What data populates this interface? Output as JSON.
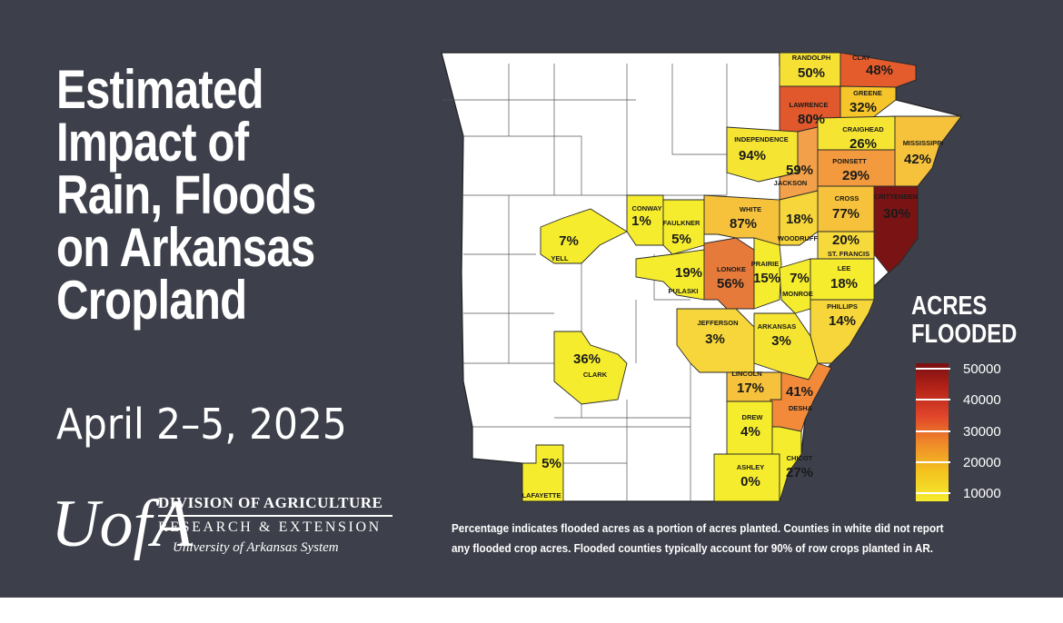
{
  "title_lines": [
    "Estimated",
    "Impact of",
    "Rain, Floods",
    "on Arkansas",
    "Cropland"
  ],
  "dates": "April 2–5, 2025",
  "logo": {
    "mark": "UofA",
    "line1": "DIVISION OF AGRICULTURE",
    "line2": "RESEARCH & EXTENSION",
    "line3": "University of Arkansas System"
  },
  "legend": {
    "title_lines": [
      "ACRES",
      "FLOODED"
    ],
    "labels": [
      "50000",
      "40000",
      "30000",
      "20000",
      "10000"
    ]
  },
  "counties": [
    {
      "name": "RANDOLPH",
      "pct": "50%",
      "color": "#f6e034"
    },
    {
      "name": "CLAY",
      "pct": "48%",
      "color": "#e55c2c"
    },
    {
      "name": "GREENE",
      "pct": "32%",
      "color": "#f6c52a"
    },
    {
      "name": "LAWRENCE",
      "pct": "80%",
      "color": "#e0582c"
    },
    {
      "name": "CRAIGHEAD",
      "pct": "26%",
      "color": "#f5e532"
    },
    {
      "name": "MISSISSIPPI",
      "pct": "42%",
      "color": "#f6c23c"
    },
    {
      "name": "INDEPENDENCE",
      "pct": "94%",
      "color": "#f5e532"
    },
    {
      "name": "JACKSON",
      "pct": "59%",
      "color": "#f2a04a"
    },
    {
      "name": "POINSETT",
      "pct": "29%",
      "color": "#f39a3e"
    },
    {
      "name": "CROSS",
      "pct": "77%",
      "color": "#f6c23c"
    },
    {
      "name": "CRITTENDEN",
      "pct": "30%",
      "color": "#7a1414"
    },
    {
      "name": "WHITE",
      "pct": "87%",
      "color": "#f6c23c"
    },
    {
      "name": "WOODRUFF",
      "pct": "18%",
      "color": "#f6d63a"
    },
    {
      "name": "ST. FRANCIS",
      "pct": "20%",
      "color": "#f6d93a"
    },
    {
      "name": "CONWAY",
      "pct": "1%",
      "color": "#f5ec2e"
    },
    {
      "name": "FAULKNER",
      "pct": "5%",
      "color": "#f5ec2e"
    },
    {
      "name": "YELL",
      "pct": "7%",
      "color": "#f5ec2e"
    },
    {
      "name": "PULASKI",
      "pct": "19%",
      "color": "#f5ec2e"
    },
    {
      "name": "LONOKE",
      "pct": "56%",
      "color": "#e67a3a"
    },
    {
      "name": "PRAIRIE",
      "pct": "15%",
      "color": "#f5ec2e"
    },
    {
      "name": "MONROE",
      "pct": "7%",
      "color": "#f5ec2e"
    },
    {
      "name": "LEE",
      "pct": "18%",
      "color": "#f5ec2e"
    },
    {
      "name": "PHILLIPS",
      "pct": "14%",
      "color": "#f6d63a"
    },
    {
      "name": "JEFFERSON",
      "pct": "3%",
      "color": "#f6d63a"
    },
    {
      "name": "ARKANSAS",
      "pct": "3%",
      "color": "#f5e532"
    },
    {
      "name": "CLARK",
      "pct": "36%",
      "color": "#f5ec2e"
    },
    {
      "name": "LINCOLN",
      "pct": "17%",
      "color": "#f6c23c"
    },
    {
      "name": "DESHA",
      "pct": "41%",
      "color": "#f28a3a"
    },
    {
      "name": "DREW",
      "pct": "4%",
      "color": "#f5ec2e"
    },
    {
      "name": "ASHLEY",
      "pct": "0%",
      "color": "#f5ec2e"
    },
    {
      "name": "CHICOT",
      "pct": "27%",
      "color": "#f5ec2e"
    },
    {
      "name": "LAFAYETTE",
      "pct": "5%",
      "color": "#f5ec2e"
    }
  ],
  "footnote_lines": [
    "Percentage indicates flooded acres as a portion of acres planted. Counties in white did not report",
    "any flooded crop acres. Flooded counties typically account for 90% of row crops planted in AR."
  ]
}
